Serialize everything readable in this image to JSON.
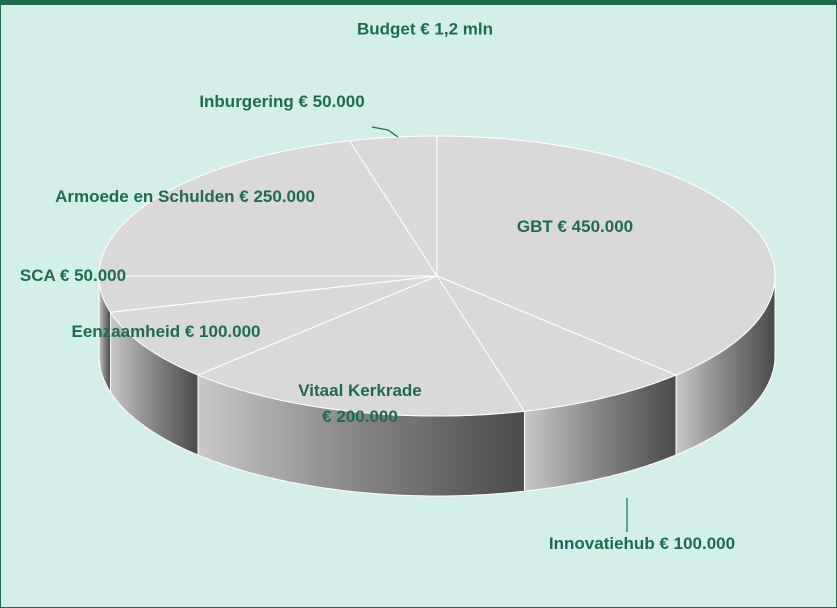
{
  "chart_data": {
    "type": "pie3d",
    "title": "Budget € 1,2 mln",
    "categories": [
      "GBT",
      "Innovatiehub",
      "Vitaal Kerkrade",
      "Eenzaamheid",
      "SCA",
      "Armoede en Schulden",
      "Inburgering"
    ],
    "values": [
      450000,
      100000,
      200000,
      100000,
      50000,
      250000,
      50000
    ],
    "value_labels": [
      "€ 450.000",
      "€ 100.000",
      "€ 200.000",
      "€ 100.000",
      "€ 50.000",
      "€ 250.000",
      "€ 50.000"
    ],
    "color": "#d9d9d9"
  }
}
